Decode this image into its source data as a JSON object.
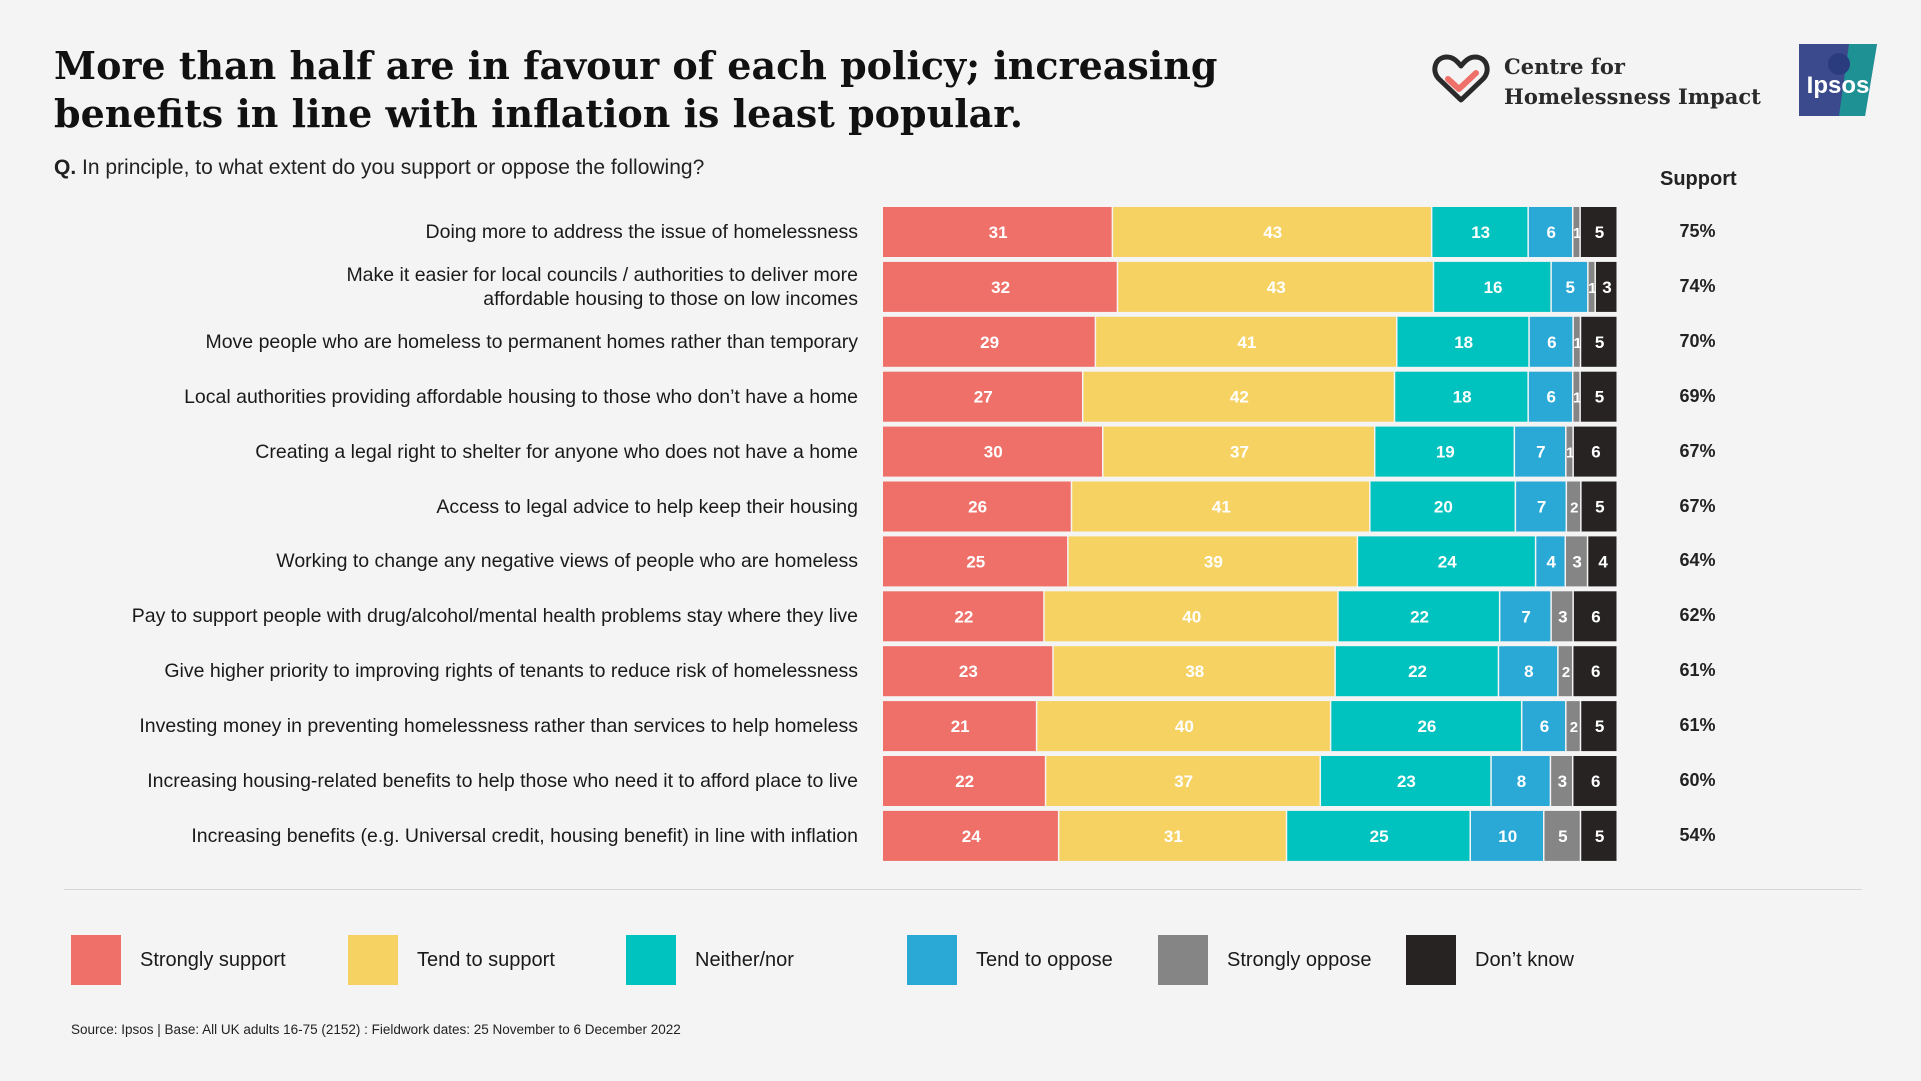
{
  "title": "More than half are in favour of each policy; increasing benefits in line with inflation is least popular.",
  "question_prefix": "Q.",
  "question_text": "In principle, to what extent do you support or oppose the following?",
  "support_header": "Support",
  "brand": {
    "line1": "Centre for",
    "line2": "Homelessness Impact",
    "partner": "Ipsos"
  },
  "source": "Source: Ipsos | Base: All UK adults 16-75 (2152) : Fieldwork dates: 25 November to 6 December 2022",
  "colors": {
    "strongly_support": "#ef7068",
    "tend_to_support": "#f6d262",
    "neither": "#00c2be",
    "tend_to_oppose": "#2aa9d7",
    "strongly_oppose": "#858585",
    "dont_know": "#262322"
  },
  "chart_data": {
    "type": "bar",
    "orientation": "horizontal",
    "stacked": true,
    "title": "More than half are in favour of each policy; increasing benefits in line with inflation is least popular.",
    "xlabel": "",
    "ylabel": "",
    "xlim": [
      0,
      100
    ],
    "legend_position": "bottom",
    "categories": [
      "Doing more to address the issue of homelessness",
      "Make it easier for local councils / authorities to deliver more affordable housing to those on low incomes",
      "Move people who are homeless to permanent homes rather than temporary",
      "Local authorities providing affordable housing to those who don’t have a home",
      "Creating a legal right to shelter for anyone who does not have a home",
      "Access to legal advice to help keep their housing",
      "Working to change any negative views of people who are homeless",
      "Pay to support people with drug/alcohol/mental health problems stay where they live",
      "Give higher priority to improving rights of tenants to reduce risk of homelessness",
      "Investing money in preventing homelessness rather than services to help homeless",
      "Increasing housing-related benefits to help those who need it to afford place to live",
      "Increasing benefits (e.g. Universal credit, housing benefit) in line with inflation"
    ],
    "label_lines": [
      [
        "Doing more to address the issue of homelessness"
      ],
      [
        "Make it easier for local councils / authorities to deliver more",
        "affordable housing to those on low incomes"
      ],
      [
        "Move people who are homeless to permanent homes rather than temporary"
      ],
      [
        "Local authorities providing affordable housing to those who don’t have a home"
      ],
      [
        "Creating a legal right to shelter for anyone who does not have a home"
      ],
      [
        "Access to legal advice to help keep their housing"
      ],
      [
        "Working to change any negative views of people who are homeless"
      ],
      [
        "Pay to support people with drug/alcohol/mental health problems stay where they live"
      ],
      [
        "Give higher priority to improving rights of tenants to reduce risk of homelessness"
      ],
      [
        "Investing money in preventing homelessness rather than services to help homeless"
      ],
      [
        "Increasing housing-related benefits to help those who need it to afford place to live"
      ],
      [
        "Increasing benefits (e.g. Universal credit, housing benefit) in line with inflation"
      ]
    ],
    "series": [
      {
        "name": "Strongly support",
        "key": "strongly_support",
        "values": [
          31,
          32,
          29,
          27,
          30,
          26,
          25,
          22,
          23,
          21,
          22,
          24
        ]
      },
      {
        "name": "Tend to support",
        "key": "tend_to_support",
        "values": [
          43,
          43,
          41,
          42,
          37,
          41,
          39,
          40,
          38,
          40,
          37,
          31
        ]
      },
      {
        "name": "Neither/nor",
        "key": "neither",
        "values": [
          13,
          16,
          18,
          18,
          19,
          20,
          24,
          22,
          22,
          26,
          23,
          25
        ]
      },
      {
        "name": "Tend to oppose",
        "key": "tend_to_oppose",
        "values": [
          6,
          5,
          6,
          6,
          7,
          7,
          4,
          7,
          8,
          6,
          8,
          10
        ]
      },
      {
        "name": "Strongly oppose",
        "key": "strongly_oppose",
        "values": [
          1,
          1,
          1,
          1,
          1,
          2,
          3,
          3,
          2,
          2,
          3,
          5
        ]
      },
      {
        "name": "Don’t know",
        "key": "dont_know",
        "values": [
          5,
          3,
          5,
          5,
          6,
          5,
          4,
          6,
          6,
          5,
          6,
          5
        ]
      }
    ],
    "support_totals": [
      "75%",
      "74%",
      "70%",
      "69%",
      "67%",
      "67%",
      "64%",
      "62%",
      "61%",
      "61%",
      "60%",
      "54%"
    ]
  }
}
